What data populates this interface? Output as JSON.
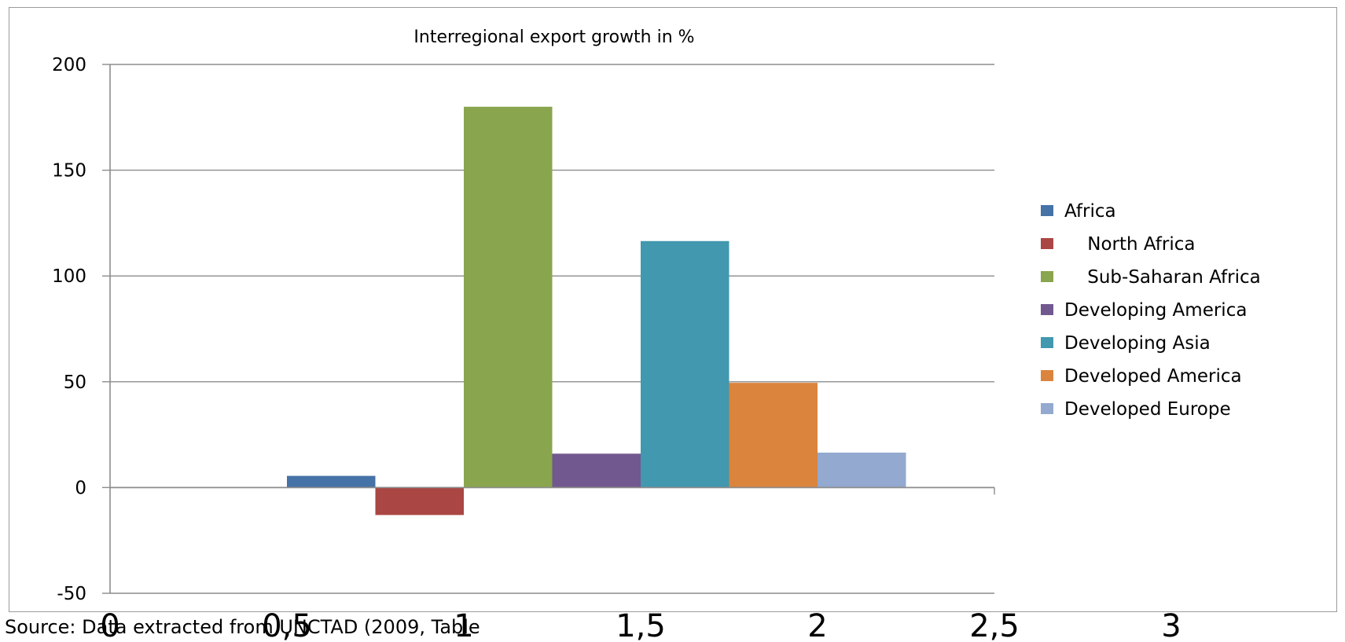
{
  "chart_data": {
    "type": "bar",
    "title": "Interregional export growth in %",
    "categories": [
      "Africa",
      "North Africa",
      "Sub-Saharan Africa",
      "Developing America",
      "Developing Asia",
      "Developed America",
      "Developed Europe"
    ],
    "series": [
      {
        "name": "Africa",
        "value": 5.5,
        "color": "#4572a7"
      },
      {
        "name": "    North Africa",
        "value": -13,
        "color": "#aa4643"
      },
      {
        "name": "    Sub-Saharan Africa",
        "value": 180,
        "color": "#89a54e"
      },
      {
        "name": "Developing America",
        "value": 16,
        "color": "#71588f"
      },
      {
        "name": "Developing Asia",
        "value": 116.5,
        "color": "#4198af"
      },
      {
        "name": "Developed America",
        "value": 49.5,
        "color": "#db843d"
      },
      {
        "name": "Developed Europe",
        "value": 16.5,
        "color": "#93a9cf"
      }
    ],
    "bar_x_range": [
      0.5,
      2.25
    ],
    "ylim": [
      -50,
      200
    ],
    "yticks": [
      "200",
      "150",
      "100",
      "50",
      "0",
      "-50"
    ],
    "xlim": [
      0,
      2.5
    ],
    "xticks": [
      "0",
      "0,5",
      "1",
      "1,5",
      "2",
      "2,5",
      "3"
    ],
    "grid": true,
    "legend_position": "right",
    "xlabel": "",
    "ylabel": ""
  },
  "source_note": "Source: Data extracted from UNCTAD (2009, Table"
}
